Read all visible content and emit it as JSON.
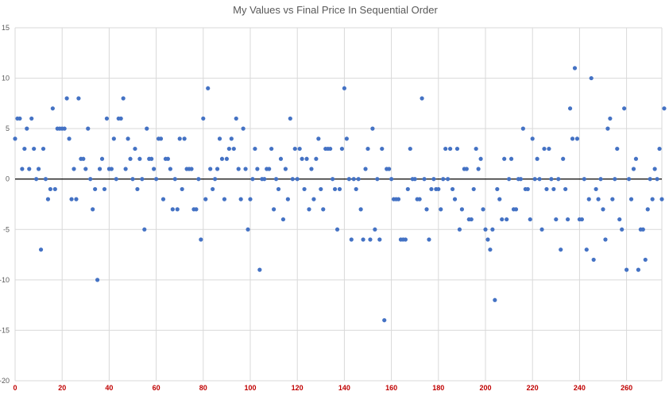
{
  "chart_data": {
    "type": "scatter",
    "title": "My Values vs Final Price In Sequential Order",
    "xlabel": "",
    "ylabel": "",
    "xlim": [
      0,
      275
    ],
    "ylim": [
      -20,
      15
    ],
    "x_ticks": [
      0,
      20,
      40,
      60,
      80,
      100,
      120,
      140,
      160,
      180,
      200,
      220,
      240,
      260
    ],
    "y_ticks": [
      -20,
      -15,
      -10,
      -5,
      0,
      5,
      10,
      15
    ],
    "grid": true,
    "legend": "none",
    "marker_color": "#4472c4",
    "tick_label_color_x": "#c00000",
    "series": [
      {
        "values": [
          4,
          6,
          6,
          1,
          3,
          5,
          1,
          6,
          3,
          0,
          1,
          -7,
          3,
          0,
          -2,
          -1,
          7,
          -1,
          5,
          5,
          5,
          5,
          8,
          4,
          -2,
          1,
          -2,
          8,
          2,
          2,
          1,
          5,
          0,
          -3,
          -1,
          -10,
          1,
          2,
          -1,
          6,
          1,
          1,
          4,
          0,
          6,
          6,
          8,
          1,
          4,
          2,
          0,
          3,
          -1,
          2,
          0,
          -5,
          5,
          2,
          2,
          1,
          0,
          4,
          4,
          -2,
          2,
          2,
          1,
          -3,
          0,
          -3,
          4,
          -1,
          4,
          1,
          1,
          1,
          -3,
          -3,
          0,
          -6,
          6,
          -2,
          9,
          1,
          -1,
          0,
          1,
          4,
          2,
          -2,
          2,
          3,
          4,
          3,
          6,
          1,
          -2,
          5,
          1,
          -5,
          -2,
          0,
          3,
          1,
          -9,
          0,
          0,
          1,
          1,
          3,
          -3,
          0,
          -1,
          2,
          -4,
          1,
          -2,
          6,
          0,
          3,
          0,
          3,
          2,
          -1,
          2,
          -3,
          1,
          -2,
          2,
          4,
          -1,
          -3,
          3,
          3,
          3,
          0,
          -1,
          -5,
          -1,
          3,
          9,
          4,
          0,
          -6,
          0,
          -1,
          0,
          -3,
          -6,
          1,
          3,
          -6,
          5,
          -5,
          0,
          -6,
          3,
          -14,
          1,
          1,
          0,
          -2,
          -2,
          -2,
          -6,
          -6,
          -6,
          -1,
          3,
          0,
          0,
          -2,
          -2,
          8,
          0,
          -3,
          -6,
          -1,
          0,
          -1,
          -1,
          -3,
          0,
          3,
          0,
          3,
          -1,
          -2,
          3,
          -5,
          -3,
          1,
          1,
          -4,
          -4,
          -1,
          3,
          1,
          2,
          -3,
          -5,
          -6,
          -7,
          -5,
          -12,
          -1,
          -2,
          -4,
          2,
          -4,
          0,
          2,
          -3,
          -3,
          0,
          0,
          5,
          -1,
          -1,
          -4,
          4,
          0,
          2,
          0,
          -5,
          3,
          -1,
          3,
          0,
          -1,
          -4,
          0,
          -7,
          2,
          -1,
          -4,
          7,
          4,
          11,
          4,
          -4,
          -4,
          0,
          -7,
          -2,
          10,
          -8,
          -1,
          -2,
          0,
          -3,
          -6,
          5,
          6,
          -2,
          0,
          3,
          -4,
          -5,
          7,
          -9,
          0,
          -2,
          1,
          2,
          -9,
          -5,
          -5,
          -8,
          -3,
          0,
          -2,
          1,
          0,
          3,
          -2,
          7
        ]
      }
    ]
  }
}
